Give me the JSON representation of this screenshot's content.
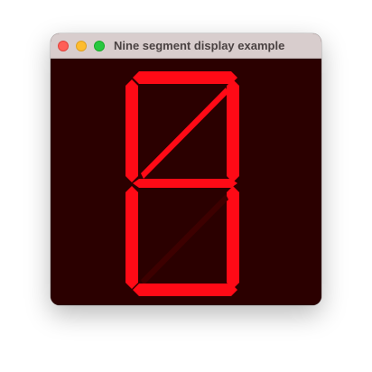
{
  "window": {
    "title": "Nine segment display example"
  },
  "colors": {
    "background": "#2b0000",
    "segment_on": "#ff0a16",
    "segment_off": "#3d0000",
    "titlebar": "#d8cdcd"
  },
  "display": {
    "segments": [
      {
        "id": "top",
        "lit": true
      },
      {
        "id": "upper-left",
        "lit": true
      },
      {
        "id": "upper-right",
        "lit": true
      },
      {
        "id": "upper-diagonal",
        "lit": true
      },
      {
        "id": "middle",
        "lit": true
      },
      {
        "id": "lower-left",
        "lit": true
      },
      {
        "id": "lower-right",
        "lit": true
      },
      {
        "id": "lower-diagonal",
        "lit": false
      },
      {
        "id": "bottom",
        "lit": true
      }
    ]
  }
}
